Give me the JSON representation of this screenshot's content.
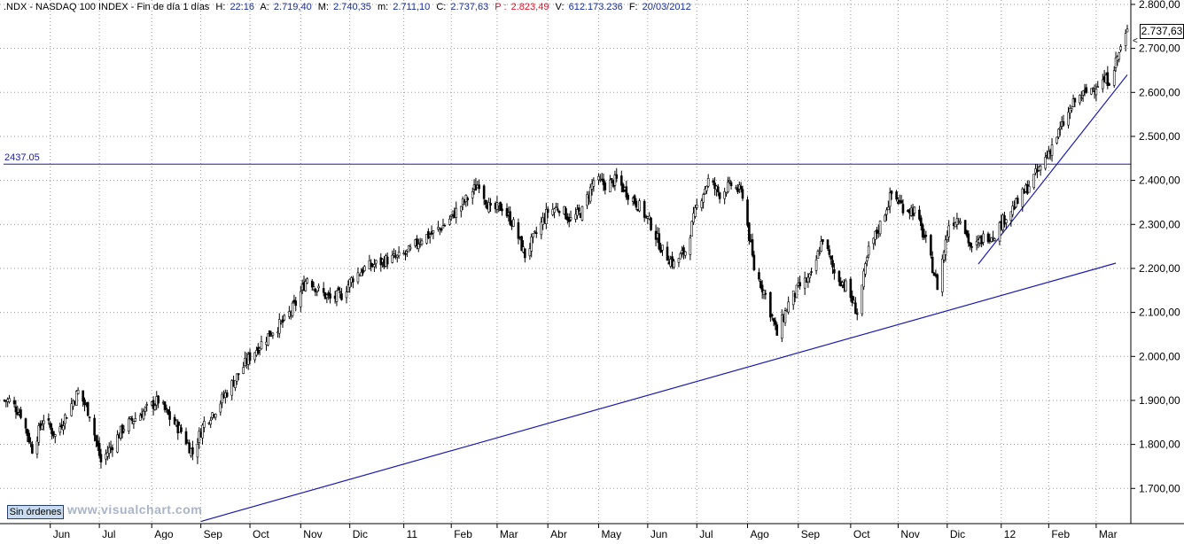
{
  "header": {
    "symbol": ".NDX - NASDAQ 100 INDEX - Fin de día 1 días",
    "h_label": "H:",
    "h_value": "22:16",
    "a_label": "A:",
    "a_value": "2.719,40",
    "mx_label": "M:",
    "mx_value": "2.740,35",
    "mn_label": "m:",
    "mn_value": "2.711,10",
    "c_label": "C:",
    "c_value": "2.737,63",
    "p_label": "P :",
    "p_value": "2.823,49",
    "v_label": "V:",
    "v_value": "612.173.236",
    "f_label": "F:",
    "f_value": "20/03/2012"
  },
  "colors": {
    "header_label": "#000000",
    "header_value": "#1a2f9c",
    "header_p": "#e0162a",
    "trendline": "#1a1ab4",
    "candles": "#000000",
    "grid": "#9a9a9a"
  },
  "orders_button": "Sin órdenes",
  "watermark": "www.visualchart.com",
  "last_price_label": "2.737,63",
  "chart_data": {
    "type": "candlestick",
    "title": ".NDX - NASDAQ 100 INDEX",
    "ylim": [
      1620,
      2810
    ],
    "y_axis_position": "right",
    "y_ticks": [
      {
        "value": 1700,
        "label": "1.700,00"
      },
      {
        "value": 1800,
        "label": "1.800,00"
      },
      {
        "value": 1900,
        "label": "1.900,00"
      },
      {
        "value": 2000,
        "label": "2.000,00"
      },
      {
        "value": 2100,
        "label": "2.100,00"
      },
      {
        "value": 2200,
        "label": "2.200,00"
      },
      {
        "value": 2300,
        "label": "2.300,00"
      },
      {
        "value": 2400,
        "label": "2.400,00"
      },
      {
        "value": 2500,
        "label": "2.500,00"
      },
      {
        "value": 2600,
        "label": "2.600,00"
      },
      {
        "value": 2700,
        "label": "2.700,00"
      },
      {
        "value": 2800,
        "label": "2.800,00"
      }
    ],
    "x_tick_labels": [
      "Jun",
      "Jul",
      "Ago",
      "Sep",
      "Oct",
      "Nov",
      "Dic",
      "11",
      "Feb",
      "Mar",
      "Abr",
      "May",
      "Jun",
      "Jul",
      "Ago",
      "Sep",
      "Oct",
      "Nov",
      "Dic",
      "12",
      "Feb",
      "Mar"
    ],
    "x_tick_dates": [
      "2010-06-01",
      "2010-07-01",
      "2010-08-02",
      "2010-09-01",
      "2010-10-01",
      "2010-11-01",
      "2010-12-01",
      "2011-01-03",
      "2011-02-01",
      "2011-03-01",
      "2011-04-01",
      "2011-05-02",
      "2011-06-01",
      "2011-07-01",
      "2011-08-01",
      "2011-09-01",
      "2011-10-03",
      "2011-11-01",
      "2011-12-01",
      "2012-01-03",
      "2012-02-01",
      "2012-03-01"
    ],
    "x_range": [
      "2010-05-04",
      "2012-03-20"
    ],
    "weekly_close": [
      [
        "2010-05-07",
        1900
      ],
      [
        "2010-05-14",
        1870
      ],
      [
        "2010-05-21",
        1790
      ],
      [
        "2010-05-28",
        1860
      ],
      [
        "2010-06-04",
        1820
      ],
      [
        "2010-06-11",
        1870
      ],
      [
        "2010-06-18",
        1920
      ],
      [
        "2010-06-25",
        1870
      ],
      [
        "2010-07-02",
        1760
      ],
      [
        "2010-07-09",
        1800
      ],
      [
        "2010-07-16",
        1840
      ],
      [
        "2010-07-23",
        1860
      ],
      [
        "2010-07-30",
        1880
      ],
      [
        "2010-08-06",
        1900
      ],
      [
        "2010-08-13",
        1860
      ],
      [
        "2010-08-20",
        1830
      ],
      [
        "2010-08-27",
        1780
      ],
      [
        "2010-09-03",
        1850
      ],
      [
        "2010-09-10",
        1880
      ],
      [
        "2010-09-17",
        1920
      ],
      [
        "2010-09-24",
        1960
      ],
      [
        "2010-10-01",
        2000
      ],
      [
        "2010-10-08",
        2030
      ],
      [
        "2010-10-15",
        2060
      ],
      [
        "2010-10-22",
        2080
      ],
      [
        "2010-10-29",
        2120
      ],
      [
        "2010-11-05",
        2180
      ],
      [
        "2010-11-12",
        2150
      ],
      [
        "2010-11-19",
        2130
      ],
      [
        "2010-11-26",
        2140
      ],
      [
        "2010-12-03",
        2180
      ],
      [
        "2010-12-10",
        2200
      ],
      [
        "2010-12-17",
        2210
      ],
      [
        "2010-12-24",
        2220
      ],
      [
        "2010-12-31",
        2225
      ],
      [
        "2011-01-07",
        2240
      ],
      [
        "2011-01-14",
        2270
      ],
      [
        "2011-01-21",
        2280
      ],
      [
        "2011-01-28",
        2300
      ],
      [
        "2011-02-04",
        2330
      ],
      [
        "2011-02-11",
        2360
      ],
      [
        "2011-02-18",
        2395
      ],
      [
        "2011-02-25",
        2330
      ],
      [
        "2011-03-04",
        2340
      ],
      [
        "2011-03-11",
        2300
      ],
      [
        "2011-03-18",
        2230
      ],
      [
        "2011-03-25",
        2280
      ],
      [
        "2011-04-01",
        2330
      ],
      [
        "2011-04-08",
        2340
      ],
      [
        "2011-04-15",
        2310
      ],
      [
        "2011-04-22",
        2330
      ],
      [
        "2011-04-29",
        2400
      ],
      [
        "2011-05-06",
        2390
      ],
      [
        "2011-05-13",
        2400
      ],
      [
        "2011-05-20",
        2370
      ],
      [
        "2011-05-27",
        2340
      ],
      [
        "2011-06-03",
        2300
      ],
      [
        "2011-06-10",
        2240
      ],
      [
        "2011-06-17",
        2210
      ],
      [
        "2011-06-24",
        2240
      ],
      [
        "2011-07-01",
        2340
      ],
      [
        "2011-07-08",
        2400
      ],
      [
        "2011-07-15",
        2370
      ],
      [
        "2011-07-22",
        2390
      ],
      [
        "2011-07-29",
        2370
      ],
      [
        "2011-08-05",
        2200
      ],
      [
        "2011-08-12",
        2140
      ],
      [
        "2011-08-19",
        2050
      ],
      [
        "2011-08-26",
        2120
      ],
      [
        "2011-09-02",
        2160
      ],
      [
        "2011-09-09",
        2180
      ],
      [
        "2011-09-16",
        2270
      ],
      [
        "2011-09-23",
        2190
      ],
      [
        "2011-09-30",
        2160
      ],
      [
        "2011-10-07",
        2100
      ],
      [
        "2011-10-14",
        2240
      ],
      [
        "2011-10-21",
        2300
      ],
      [
        "2011-10-28",
        2370
      ],
      [
        "2011-11-04",
        2340
      ],
      [
        "2011-11-11",
        2330
      ],
      [
        "2011-11-18",
        2260
      ],
      [
        "2011-11-25",
        2160
      ],
      [
        "2011-12-02",
        2300
      ],
      [
        "2011-12-09",
        2320
      ],
      [
        "2011-12-16",
        2240
      ],
      [
        "2011-12-23",
        2270
      ],
      [
        "2011-12-30",
        2280
      ],
      [
        "2012-01-06",
        2320
      ],
      [
        "2012-01-13",
        2350
      ],
      [
        "2012-01-20",
        2390
      ],
      [
        "2012-01-27",
        2430
      ],
      [
        "2012-02-03",
        2480
      ],
      [
        "2012-02-10",
        2530
      ],
      [
        "2012-02-17",
        2580
      ],
      [
        "2012-02-24",
        2600
      ],
      [
        "2012-03-02",
        2620
      ],
      [
        "2012-03-09",
        2630
      ],
      [
        "2012-03-16",
        2700
      ],
      [
        "2012-03-20",
        2737.63
      ]
    ],
    "horizontal_line": {
      "value": 2437.05,
      "label": "2437.05"
    },
    "trendlines": [
      {
        "name": "long-term-support",
        "start": [
          "2010-09-01",
          1625
        ],
        "end": [
          "2012-03-13",
          2212
        ]
      },
      {
        "name": "short-term-support",
        "start": [
          "2011-12-20",
          2210
        ],
        "end": [
          "2012-03-20",
          2640
        ]
      }
    ],
    "last_close": 2737.63,
    "grid": true,
    "legend": "none"
  }
}
